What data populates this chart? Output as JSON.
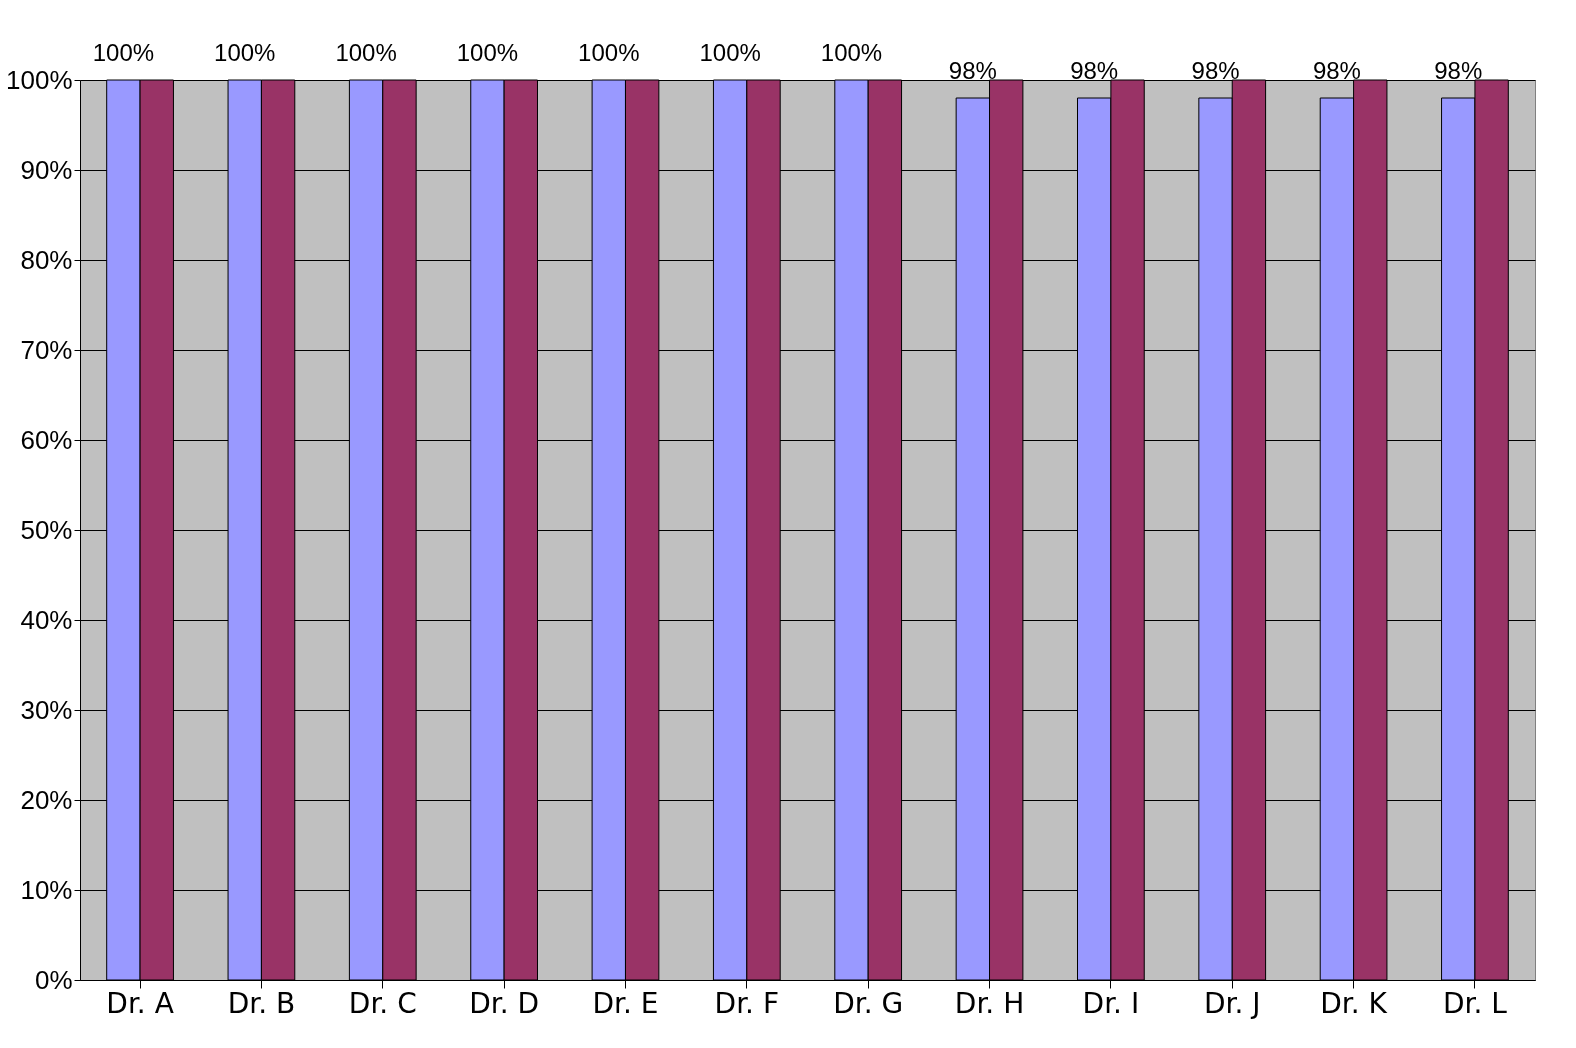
{
  "chart_data": {
    "type": "bar",
    "categories": [
      "Dr. A",
      "Dr. B",
      "Dr. C",
      "Dr. D",
      "Dr. E",
      "Dr. F",
      "Dr. G",
      "Dr. H",
      "Dr. I",
      "Dr. J",
      "Dr. K",
      "Dr. L"
    ],
    "series": [
      {
        "color": "#9999ff",
        "values": [
          100,
          100,
          100,
          100,
          100,
          100,
          100,
          98,
          98,
          98,
          98,
          98
        ],
        "value_labels": [
          "100%",
          "100%",
          "100%",
          "100%",
          "100%",
          "100%",
          "100%",
          "98%",
          "98%",
          "98%",
          "98%",
          "98%"
        ]
      },
      {
        "color": "#993366",
        "values": [
          100,
          100,
          100,
          100,
          100,
          100,
          100,
          100,
          100,
          100,
          100,
          100
        ]
      }
    ],
    "ylim": [
      0,
      100
    ],
    "yticks": [
      {
        "value": 0,
        "label": "0%"
      },
      {
        "value": 10,
        "label": "10%"
      },
      {
        "value": 20,
        "label": "20%"
      },
      {
        "value": 30,
        "label": "30%"
      },
      {
        "value": 40,
        "label": "40%"
      },
      {
        "value": 50,
        "label": "50%"
      },
      {
        "value": 60,
        "label": "60%"
      },
      {
        "value": 70,
        "label": "70%"
      },
      {
        "value": 80,
        "label": "80%"
      },
      {
        "value": 90,
        "label": "90%"
      },
      {
        "value": 100,
        "label": "100%"
      }
    ],
    "grid": "y",
    "legend": false
  }
}
